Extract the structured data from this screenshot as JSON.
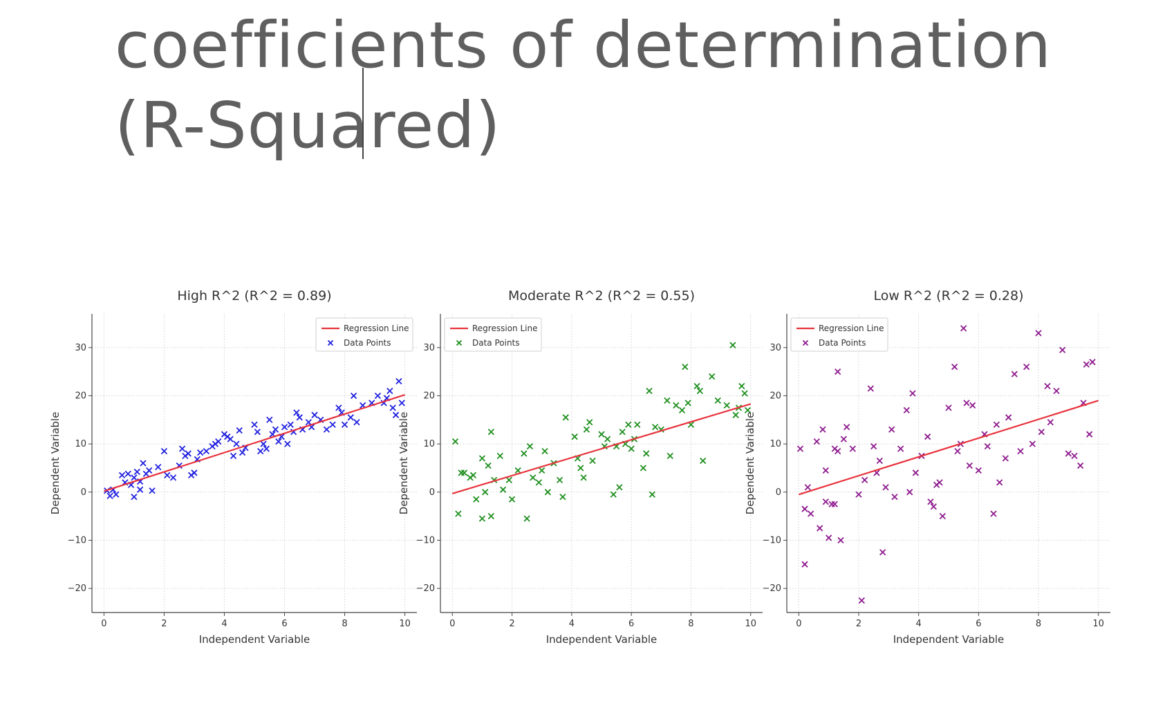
{
  "page": {
    "title_line1": "coefficients of determination",
    "title_line2": "(R-Squared)"
  },
  "colors": {
    "title_text": "#5f5f5f",
    "regression_line": "#e8323c",
    "high_points": "#1f1fe0",
    "moderate_points": "#1e8f1e",
    "low_points": "#8e1a8e",
    "grid": "#dcdcdc"
  },
  "chart_data": [
    {
      "type": "scatter",
      "title": "High R^2 (R^2 = 0.89)",
      "xlabel": "Independent Variable",
      "ylabel": "Dependent Variable",
      "xlim": [
        -0.4,
        10.4
      ],
      "ylim": [
        -25,
        37
      ],
      "xticks": [
        0,
        2,
        4,
        6,
        8,
        10
      ],
      "yticks": [
        -20,
        -10,
        0,
        10,
        20,
        30
      ],
      "grid": true,
      "legend_position": "top-right",
      "legend": [
        "Regression Line",
        "Data Points"
      ],
      "point_color": "#1f1fe0",
      "regression": {
        "x": [
          0,
          10
        ],
        "y": [
          0.2,
          20.2
        ]
      },
      "points": {
        "x": [
          0.1,
          0.2,
          0.3,
          0.4,
          0.6,
          0.7,
          0.8,
          0.9,
          1.0,
          1.0,
          1.1,
          1.2,
          1.2,
          1.3,
          1.4,
          1.5,
          1.6,
          1.8,
          2.0,
          2.1,
          2.3,
          2.5,
          2.6,
          2.7,
          2.8,
          2.9,
          3.0,
          3.1,
          3.2,
          3.4,
          3.6,
          3.7,
          3.8,
          4.0,
          4.1,
          4.2,
          4.3,
          4.4,
          4.5,
          4.6,
          4.7,
          5.0,
          5.1,
          5.2,
          5.3,
          5.4,
          5.5,
          5.6,
          5.7,
          5.8,
          5.9,
          6.0,
          6.1,
          6.2,
          6.3,
          6.4,
          6.5,
          6.6,
          6.8,
          6.9,
          7.0,
          7.2,
          7.4,
          7.6,
          7.8,
          7.9,
          8.0,
          8.2,
          8.3,
          8.4,
          8.6,
          8.9,
          9.1,
          9.3,
          9.4,
          9.5,
          9.6,
          9.7,
          9.8,
          9.9
        ],
        "y": [
          0.3,
          -0.8,
          0.5,
          -0.5,
          3.5,
          2.0,
          3.8,
          1.5,
          -1.0,
          3.0,
          4.2,
          0.5,
          2.2,
          6.0,
          3.8,
          4.5,
          0.3,
          5.2,
          8.5,
          3.5,
          3.0,
          5.5,
          9.0,
          7.5,
          8.0,
          3.5,
          4.0,
          6.8,
          8.2,
          8.5,
          9.5,
          10.0,
          10.5,
          12.0,
          11.5,
          11.0,
          7.5,
          10.0,
          12.8,
          8.2,
          9.2,
          14.0,
          12.5,
          8.5,
          10.0,
          9.0,
          15.0,
          12.0,
          13.0,
          10.5,
          11.5,
          13.5,
          10.0,
          14.0,
          12.5,
          16.5,
          15.5,
          13.0,
          14.5,
          13.5,
          16.0,
          15.0,
          13.0,
          14.0,
          17.5,
          16.5,
          14.0,
          15.5,
          20.0,
          14.5,
          18.0,
          18.5,
          20.0,
          18.5,
          19.5,
          21.0,
          17.5,
          16.0,
          23.0,
          18.5
        ]
      }
    },
    {
      "type": "scatter",
      "title": "Moderate R^2 (R^2 = 0.55)",
      "xlabel": "Independent Variable",
      "ylabel": "Dependent Variable",
      "xlim": [
        -0.4,
        10.4
      ],
      "ylim": [
        -25,
        37
      ],
      "xticks": [
        0,
        2,
        4,
        6,
        8,
        10
      ],
      "yticks": [
        -20,
        -10,
        0,
        10,
        20,
        30
      ],
      "grid": true,
      "legend_position": "top-left",
      "legend": [
        "Regression Line",
        "Data Points"
      ],
      "point_color": "#1e8f1e",
      "regression": {
        "x": [
          0,
          10
        ],
        "y": [
          -0.3,
          18.3
        ]
      },
      "points": {
        "x": [
          0.1,
          0.2,
          0.3,
          0.4,
          0.6,
          0.7,
          0.8,
          1.0,
          1.0,
          1.1,
          1.2,
          1.3,
          1.3,
          1.4,
          1.6,
          1.7,
          1.9,
          2.0,
          2.2,
          2.4,
          2.5,
          2.6,
          2.7,
          2.9,
          3.0,
          3.1,
          3.2,
          3.4,
          3.6,
          3.7,
          3.8,
          4.1,
          4.2,
          4.3,
          4.4,
          4.5,
          4.6,
          4.7,
          5.0,
          5.1,
          5.2,
          5.4,
          5.5,
          5.6,
          5.7,
          5.8,
          5.9,
          6.0,
          6.1,
          6.2,
          6.4,
          6.5,
          6.6,
          6.7,
          6.8,
          7.0,
          7.2,
          7.3,
          7.5,
          7.7,
          7.8,
          7.9,
          8.0,
          8.2,
          8.3,
          8.4,
          8.7,
          8.9,
          9.2,
          9.4,
          9.5,
          9.6,
          9.7,
          9.8,
          9.9
        ],
        "y": [
          10.5,
          -4.5,
          4.0,
          4.0,
          3.0,
          3.5,
          -1.5,
          7.0,
          -5.5,
          0.0,
          5.5,
          -5.0,
          12.5,
          2.5,
          7.5,
          0.5,
          2.5,
          -1.5,
          4.5,
          8.0,
          -5.5,
          9.5,
          3.0,
          2.0,
          4.5,
          8.5,
          0.0,
          6.0,
          2.5,
          -1.0,
          15.5,
          11.5,
          7.0,
          5.0,
          3.0,
          13.0,
          14.5,
          6.5,
          12.0,
          9.5,
          11.0,
          -0.5,
          9.5,
          1.0,
          12.5,
          10.0,
          14.0,
          9.0,
          11.0,
          14.0,
          5.0,
          8.0,
          21.0,
          -0.5,
          13.5,
          13.0,
          19.0,
          7.5,
          18.0,
          17.0,
          26.0,
          18.5,
          14.0,
          22.0,
          21.0,
          6.5,
          24.0,
          19.0,
          18.0,
          30.5,
          16.0,
          17.5,
          22.0,
          20.5,
          17.0
        ]
      }
    },
    {
      "type": "scatter",
      "title": "Low R^2 (R^2 = 0.28)",
      "xlabel": "Independent Variable",
      "ylabel": "Dependent Variable",
      "xlim": [
        -0.4,
        10.4
      ],
      "ylim": [
        -25,
        37
      ],
      "xticks": [
        0,
        2,
        4,
        6,
        8,
        10
      ],
      "yticks": [
        -20,
        -10,
        0,
        10,
        20,
        30
      ],
      "grid": true,
      "legend_position": "top-left",
      "legend": [
        "Regression Line",
        "Data Points"
      ],
      "point_color": "#8e1a8e",
      "regression": {
        "x": [
          0,
          10
        ],
        "y": [
          -0.5,
          19.0
        ]
      },
      "points": {
        "x": [
          0.05,
          0.2,
          0.2,
          0.3,
          0.4,
          0.6,
          0.7,
          0.8,
          0.9,
          0.9,
          1.0,
          1.1,
          1.2,
          1.2,
          1.3,
          1.3,
          1.4,
          1.5,
          1.6,
          1.8,
          2.0,
          2.1,
          2.2,
          2.4,
          2.5,
          2.6,
          2.7,
          2.8,
          2.9,
          3.1,
          3.2,
          3.4,
          3.6,
          3.7,
          3.8,
          3.9,
          4.1,
          4.3,
          4.4,
          4.5,
          4.6,
          4.7,
          4.8,
          5.0,
          5.2,
          5.3,
          5.4,
          5.5,
          5.6,
          5.7,
          5.8,
          6.0,
          6.2,
          6.3,
          6.5,
          6.6,
          6.7,
          6.9,
          7.0,
          7.2,
          7.4,
          7.6,
          7.8,
          8.0,
          8.1,
          8.3,
          8.4,
          8.6,
          8.8,
          9.0,
          9.2,
          9.4,
          9.5,
          9.6,
          9.7,
          9.8
        ],
        "y": [
          9.0,
          -15.0,
          -3.5,
          1.0,
          -4.5,
          10.5,
          -7.5,
          13.0,
          4.5,
          -2.0,
          -9.5,
          -2.5,
          9.0,
          -2.5,
          25.0,
          8.5,
          -10.0,
          11.0,
          13.5,
          9.0,
          -0.5,
          -22.5,
          2.5,
          21.5,
          9.5,
          4.0,
          6.5,
          -12.5,
          1.0,
          13.0,
          -1.0,
          9.0,
          17.0,
          0.0,
          20.5,
          4.0,
          7.5,
          11.5,
          -2.0,
          -3.0,
          1.5,
          2.0,
          -5.0,
          17.5,
          26.0,
          8.5,
          10.0,
          34.0,
          18.5,
          5.5,
          18.0,
          4.5,
          12.0,
          9.5,
          -4.5,
          14.0,
          2.0,
          7.0,
          15.5,
          24.5,
          8.5,
          26.0,
          10.0,
          33.0,
          12.5,
          22.0,
          14.5,
          21.0,
          29.5,
          8.0,
          7.5,
          5.5,
          18.5,
          26.5,
          12.0,
          27.0
        ]
      }
    }
  ]
}
